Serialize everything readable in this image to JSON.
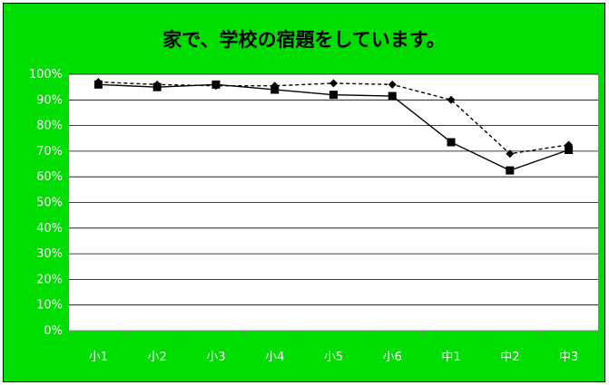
{
  "chart_data": {
    "type": "line",
    "title": "家で、学校の宿題をしています。",
    "categories": [
      "小1",
      "小2",
      "小3",
      "小4",
      "小5",
      "小6",
      "中1",
      "中2",
      "中3"
    ],
    "series": [
      {
        "marker": "square",
        "line": "solid",
        "color": "#000000",
        "values": [
          96,
          95,
          96,
          94,
          92,
          91.5,
          73.5,
          62.5,
          70.5
        ]
      },
      {
        "marker": "diamond",
        "line": "dashed",
        "color": "#000000",
        "values": [
          97,
          96,
          95.5,
          95.5,
          96.5,
          96,
          90,
          69,
          72.5
        ]
      }
    ],
    "y_ticks": [
      "100%",
      "90%",
      "80%",
      "70%",
      "60%",
      "50%",
      "40%",
      "30%",
      "20%",
      "10%",
      "0%"
    ],
    "ylim": [
      0,
      100
    ],
    "grid": true,
    "legend": false,
    "colors": {
      "background": "#00dd00",
      "tick_label": "#ffffff",
      "line": "#000000"
    }
  }
}
